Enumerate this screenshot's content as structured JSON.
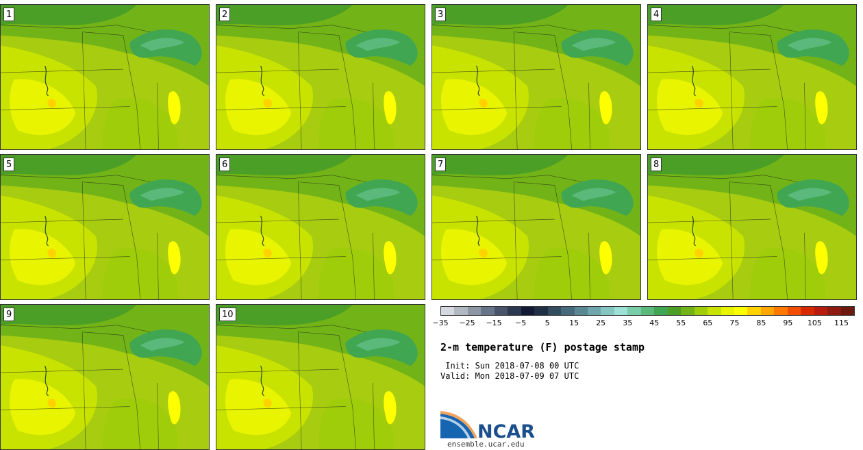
{
  "panels": [
    "1",
    "2",
    "3",
    "4",
    "5",
    "6",
    "7",
    "8",
    "9",
    "10"
  ],
  "colorbar": {
    "colors": [
      "#d4d9df",
      "#b1b8c2",
      "#8c96a5",
      "#687488",
      "#49546a",
      "#2c3750",
      "#121a33",
      "#1f3045",
      "#334d5f",
      "#466a79",
      "#5a8892",
      "#6ea6ab",
      "#84c4c1",
      "#9be1d5",
      "#79cca8",
      "#5cb97c",
      "#41a651",
      "#4b9e26",
      "#72b417",
      "#9fcd09",
      "#c9e301",
      "#e8f400",
      "#ffff00",
      "#ffd200",
      "#ffa600",
      "#ff7900",
      "#f24e00",
      "#d82900",
      "#b71c0c",
      "#8f1a10",
      "#6b1a10"
    ],
    "tick_labels": [
      "−35",
      "−25",
      "−15",
      "−5",
      "5",
      "15",
      "25",
      "35",
      "45",
      "55",
      "65",
      "75",
      "85",
      "95",
      "105",
      "115"
    ]
  },
  "title": "2-m temperature (F) postage stamp",
  "init": " Init: Sun 2018-07-08 00 UTC",
  "valid": "Valid: Mon 2018-07-09 07 UTC",
  "logo_text": "NCAR",
  "website": "ensemble.ucar.edu"
}
